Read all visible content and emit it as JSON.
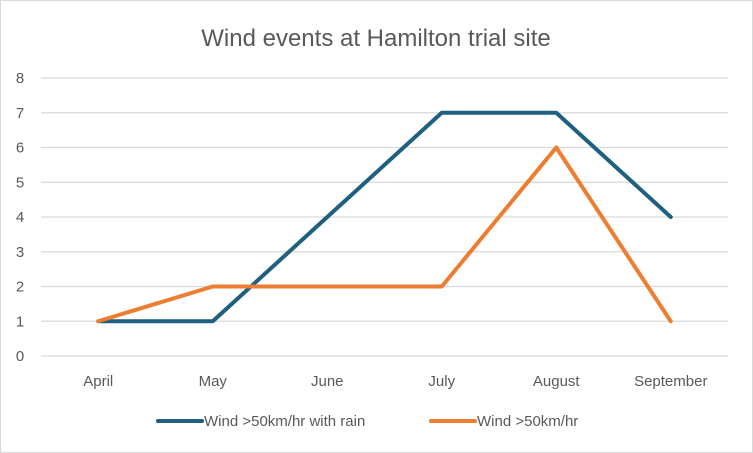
{
  "chart_data": {
    "type": "line",
    "title": "Wind events at Hamilton trial site",
    "xlabel": "",
    "ylabel": "",
    "categories": [
      "April",
      "May",
      "June",
      "July",
      "August",
      "September"
    ],
    "ylim": [
      0,
      8
    ],
    "yticks": [
      "0",
      "1",
      "2",
      "3",
      "4",
      "5",
      "6",
      "7",
      "8"
    ],
    "grid": true,
    "legend_position": "bottom",
    "series": [
      {
        "name": "Wind >50km/hr with rain",
        "color": "#1f5f7f",
        "values": [
          1,
          1,
          4,
          7,
          7,
          4
        ]
      },
      {
        "name": "Wind >50km/hr",
        "color": "#ed7d31",
        "values": [
          1,
          2,
          2,
          2,
          6,
          1
        ]
      }
    ]
  }
}
